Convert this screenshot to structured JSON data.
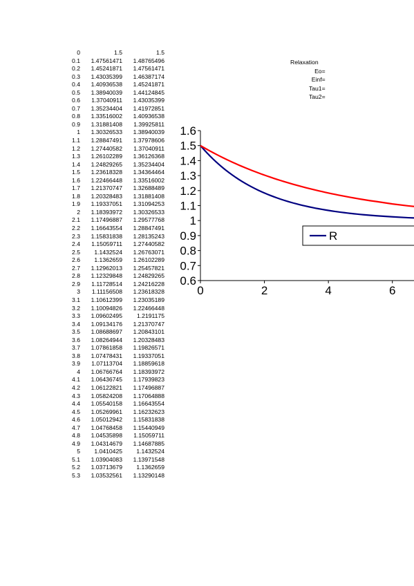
{
  "sheet": {
    "header": [
      "0",
      "1.5",
      "1.5"
    ],
    "rows": [
      [
        "0.1",
        "1.47561471",
        "1.48765496"
      ],
      [
        "0.2",
        "1.45241871",
        "1.47561471"
      ],
      [
        "0.3",
        "1.43035399",
        "1.46387174"
      ],
      [
        "0.4",
        "1.40936538",
        "1.45241871"
      ],
      [
        "0.5",
        "1.38940039",
        "1.44124845"
      ],
      [
        "0.6",
        "1.37040911",
        "1.43035399"
      ],
      [
        "0.7",
        "1.35234404",
        "1.41972851"
      ],
      [
        "0.8",
        "1.33516002",
        "1.40936538"
      ],
      [
        "0.9",
        "1.31881408",
        "1.39925811"
      ],
      [
        "1",
        "1.30326533",
        "1.38940039"
      ],
      [
        "1.1",
        "1.28847491",
        "1.37978606"
      ],
      [
        "1.2",
        "1.27440582",
        "1.37040911"
      ],
      [
        "1.3",
        "1.26102289",
        "1.36126368"
      ],
      [
        "1.4",
        "1.24829265",
        "1.35234404"
      ],
      [
        "1.5",
        "1.23618328",
        "1.34364464"
      ],
      [
        "1.6",
        "1.22466448",
        "1.33516002"
      ],
      [
        "1.7",
        "1.21370747",
        "1.32688489"
      ],
      [
        "1.8",
        "1.20328483",
        "1.31881408"
      ],
      [
        "1.9",
        "1.19337051",
        "1.31094253"
      ],
      [
        "2",
        "1.18393972",
        "1.30326533"
      ],
      [
        "2.1",
        "1.17496887",
        "1.29577768"
      ],
      [
        "2.2",
        "1.16643554",
        "1.28847491"
      ],
      [
        "2.3",
        "1.15831838",
        "1.28135243"
      ],
      [
        "2.4",
        "1.15059711",
        "1.27440582"
      ],
      [
        "2.5",
        "1.1432524",
        "1.26763071"
      ],
      [
        "2.6",
        "1.1362659",
        "1.26102289"
      ],
      [
        "2.7",
        "1.12962013",
        "1.25457821"
      ],
      [
        "2.8",
        "1.12329848",
        "1.24829265"
      ],
      [
        "2.9",
        "1.11728514",
        "1.24216228"
      ],
      [
        "3",
        "1.11156508",
        "1.23618328"
      ],
      [
        "3.1",
        "1.10612399",
        "1.23035189"
      ],
      [
        "3.2",
        "1.10094826",
        "1.22466448"
      ],
      [
        "3.3",
        "1.09602495",
        "1.2191175"
      ],
      [
        "3.4",
        "1.09134176",
        "1.21370747"
      ],
      [
        "3.5",
        "1.08688697",
        "1.20843101"
      ],
      [
        "3.6",
        "1.08264944",
        "1.20328483"
      ],
      [
        "3.7",
        "1.07861858",
        "1.19826571"
      ],
      [
        "3.8",
        "1.07478431",
        "1.19337051"
      ],
      [
        "3.9",
        "1.07113704",
        "1.18859618"
      ],
      [
        "4",
        "1.06766764",
        "1.18393972"
      ],
      [
        "4.1",
        "1.06436745",
        "1.17939823"
      ],
      [
        "4.2",
        "1.06122821",
        "1.17496887"
      ],
      [
        "4.3",
        "1.05824208",
        "1.17064888"
      ],
      [
        "4.4",
        "1.05540158",
        "1.16643554"
      ],
      [
        "4.5",
        "1.05269961",
        "1.16232623"
      ],
      [
        "4.6",
        "1.05012942",
        "1.15831838"
      ],
      [
        "4.7",
        "1.04768458",
        "1.15440949"
      ],
      [
        "4.8",
        "1.04535898",
        "1.15059711"
      ],
      [
        "4.9",
        "1.04314679",
        "1.14687885"
      ],
      [
        "5",
        "1.0410425",
        "1.1432524"
      ],
      [
        "5.1",
        "1.03904083",
        "1.13971548"
      ],
      [
        "5.2",
        "1.03713679",
        "1.1362659"
      ],
      [
        "5.3",
        "1.03532561",
        "1.13290148"
      ]
    ]
  },
  "params": {
    "title": "Relaxation",
    "eo": "Eo=",
    "einf": "Einf=",
    "tau1": "Tau1=",
    "tau2": "Tau2="
  },
  "chart_data": {
    "type": "line",
    "yticks": [
      "0.6",
      "0.7",
      "0.8",
      "0.9",
      "1",
      "1.1",
      "1.2",
      "1.3",
      "1.4",
      "1.5",
      "1.6"
    ],
    "xticks": [
      "0",
      "2",
      "4",
      "6"
    ],
    "ylim": [
      0.6,
      1.6
    ],
    "xlim": [
      0,
      7
    ],
    "legend_text": "R",
    "legend_color": "#000080",
    "series": [
      {
        "color": "#000080",
        "x": [
          0,
          0.1,
          0.2,
          0.3,
          0.4,
          0.5,
          0.6,
          0.7,
          0.8,
          0.9,
          1,
          1.1,
          1.2,
          1.3,
          1.4,
          1.5,
          1.6,
          1.7,
          1.8,
          1.9,
          2,
          2.1,
          2.2,
          2.3,
          2.4,
          2.5,
          2.6,
          2.7,
          2.8,
          2.9,
          3,
          3.1,
          3.2,
          3.3,
          3.4,
          3.5,
          3.6,
          3.7,
          3.8,
          3.9,
          4,
          4.1,
          4.2,
          4.3,
          4.4,
          4.5,
          4.6,
          4.7,
          4.8,
          4.9,
          5,
          5.1,
          5.2,
          5.3,
          5.5,
          6,
          6.5,
          7
        ],
        "y": [
          1.5,
          1.47561471,
          1.45241871,
          1.43035399,
          1.40936538,
          1.38940039,
          1.37040911,
          1.35234404,
          1.33516002,
          1.31881408,
          1.30326533,
          1.28847491,
          1.27440582,
          1.26102289,
          1.24829265,
          1.23618328,
          1.22466448,
          1.21370747,
          1.20328483,
          1.19337051,
          1.18393972,
          1.17496887,
          1.16643554,
          1.15831838,
          1.15059711,
          1.1432524,
          1.1362659,
          1.12962013,
          1.12329848,
          1.11728514,
          1.11156508,
          1.10612399,
          1.10094826,
          1.09602495,
          1.09134176,
          1.08688697,
          1.08264944,
          1.07861858,
          1.07478431,
          1.07113704,
          1.06766764,
          1.06436745,
          1.06122821,
          1.05824208,
          1.05540158,
          1.05269961,
          1.05012942,
          1.04768458,
          1.04535898,
          1.04314679,
          1.0410425,
          1.03904083,
          1.03713679,
          1.03532561,
          1.032,
          1.025,
          1.019,
          1.015
        ]
      },
      {
        "color": "#ff0000",
        "x": [
          0,
          0.1,
          0.2,
          0.3,
          0.4,
          0.5,
          0.6,
          0.7,
          0.8,
          0.9,
          1,
          1.1,
          1.2,
          1.3,
          1.4,
          1.5,
          1.6,
          1.7,
          1.8,
          1.9,
          2,
          2.1,
          2.2,
          2.3,
          2.4,
          2.5,
          2.6,
          2.7,
          2.8,
          2.9,
          3,
          3.1,
          3.2,
          3.3,
          3.4,
          3.5,
          3.6,
          3.7,
          3.8,
          3.9,
          4,
          4.1,
          4.2,
          4.3,
          4.4,
          4.5,
          4.6,
          4.7,
          4.8,
          4.9,
          5,
          5.1,
          5.2,
          5.3,
          5.5,
          6,
          6.5,
          7
        ],
        "y": [
          1.5,
          1.48765496,
          1.47561471,
          1.46387174,
          1.45241871,
          1.44124845,
          1.43035399,
          1.41972851,
          1.40936538,
          1.39925811,
          1.38940039,
          1.37978606,
          1.37040911,
          1.36126368,
          1.35234404,
          1.34364464,
          1.33516002,
          1.32688489,
          1.31881408,
          1.31094253,
          1.30326533,
          1.29577768,
          1.28847491,
          1.28135243,
          1.27440582,
          1.26763071,
          1.26102289,
          1.25457821,
          1.24829265,
          1.24216228,
          1.23618328,
          1.23035189,
          1.22466448,
          1.2191175,
          1.21370747,
          1.20843101,
          1.20328483,
          1.19826571,
          1.19337051,
          1.18859618,
          1.18393972,
          1.17939823,
          1.17496887,
          1.17064888,
          1.16643554,
          1.16232623,
          1.15831838,
          1.15440949,
          1.15059711,
          1.14687885,
          1.1432524,
          1.13971548,
          1.1362659,
          1.13290148,
          1.127,
          1.111,
          1.098,
          1.087
        ]
      }
    ]
  }
}
